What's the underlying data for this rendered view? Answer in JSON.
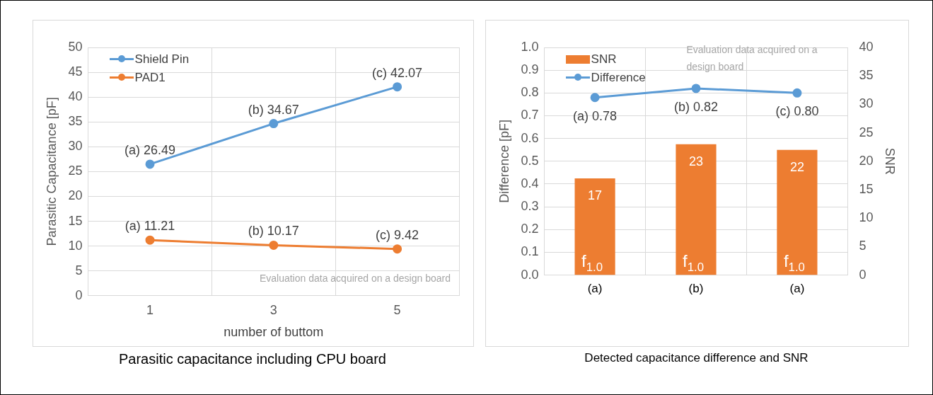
{
  "chart_data": [
    {
      "type": "line",
      "title": "Parasitic capacitance including CPU board",
      "xlabel": "number of buttom",
      "ylabel": "Parasitic Capacitance [pF]",
      "categories": [
        "1",
        "3",
        "5"
      ],
      "series": [
        {
          "name": "Shield Pin",
          "color": "#5b9bd5",
          "values": [
            26.49,
            34.67,
            42.07
          ],
          "value_labels": [
            "(a) 26.49",
            "(b) 34.67",
            "(c) 42.07"
          ]
        },
        {
          "name": "PAD1",
          "color": "#ed7d31",
          "values": [
            11.21,
            10.17,
            9.42
          ],
          "value_labels": [
            "(a) 11.21",
            "(b) 10.17",
            "(c) 9.42"
          ]
        }
      ],
      "ylim": [
        0,
        50
      ],
      "yticks": [
        0,
        5,
        10,
        15,
        20,
        25,
        30,
        35,
        40,
        45,
        50
      ],
      "grid": true,
      "legend": "top left",
      "marker": "circle",
      "annotations": [
        "Evaluation data acquired on a design board"
      ]
    },
    {
      "type": "bar",
      "title": "Detected capacitance difference and SNR",
      "ylabel": "Difference [pF]",
      "y2label": "SNR",
      "categories": [
        "(a)",
        "(b)",
        "(a)"
      ],
      "series": [
        {
          "name": "SNR",
          "axis": "y2",
          "color": "#ed7d31",
          "values": [
            17,
            23,
            22
          ],
          "value_labels": [
            "17",
            "23",
            "22"
          ]
        },
        {
          "name": "Difference",
          "type": "line",
          "color": "#5b9bd5",
          "values": [
            0.78,
            0.82,
            0.8
          ],
          "value_labels": [
            "(a) 0.78",
            "(b) 0.82",
            "(c) 0.80"
          ]
        }
      ],
      "ylim": [
        0,
        1
      ],
      "yticks": [
        {
          "value": 0,
          "label": "0.0"
        },
        0.1,
        0.2,
        0.3,
        0.4,
        0.5,
        0.6,
        0.7,
        0.8,
        0.9,
        {
          "value": 1,
          "label": "1.0"
        }
      ],
      "y2lim": [
        0,
        40
      ],
      "y2ticks": [
        0,
        5,
        10,
        15,
        20,
        25,
        30,
        35,
        40
      ],
      "grid": true,
      "legend": "top left",
      "marker": "circle",
      "annotations": [
        "Evaluation data acquired on a design board",
        "f$_{1.0}$",
        "f$_{1.0}$",
        "f$_{1.0}$"
      ]
    }
  ]
}
